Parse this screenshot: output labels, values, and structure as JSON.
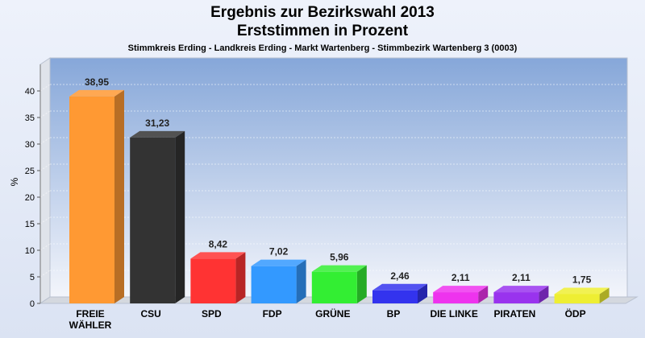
{
  "chart_data": {
    "type": "bar",
    "title": "Ergebnis zur Bezirkswahl 2013",
    "title_line2": "Erststimmen in Prozent",
    "subtitle": "Stimmkreis Erding - Landkreis Erding - Markt Wartenberg - Stimmbezirk Wartenberg 3 (0003)",
    "ylabel": "%",
    "xlabel": "",
    "ylim": [
      0,
      45
    ],
    "yticks": [
      0,
      5,
      10,
      15,
      20,
      25,
      30,
      35,
      40
    ],
    "grid": true,
    "categories": [
      "FREIE WÄHLER",
      "CSU",
      "SPD",
      "FDP",
      "GRÜNE",
      "BP",
      "DIE LINKE",
      "PIRATEN",
      "ÖDP"
    ],
    "category_lines": [
      [
        "FREIE",
        "WÄHLER"
      ],
      [
        "CSU"
      ],
      [
        "SPD"
      ],
      [
        "FDP"
      ],
      [
        "GRÜNE"
      ],
      [
        "BP"
      ],
      [
        "DIE LINKE"
      ],
      [
        "PIRATEN"
      ],
      [
        "ÖDP"
      ]
    ],
    "values": [
      38.95,
      31.23,
      8.42,
      7.02,
      5.96,
      2.46,
      2.11,
      2.11,
      1.75
    ],
    "value_labels": [
      "38,95",
      "31,23",
      "8,42",
      "7,02",
      "5,96",
      "2,46",
      "2,11",
      "2,11",
      "1,75"
    ],
    "colors": [
      "#ff9933",
      "#333333",
      "#ff3333",
      "#3399ff",
      "#33ee33",
      "#3333ee",
      "#ee33ee",
      "#9933ee",
      "#eeee33"
    ]
  }
}
